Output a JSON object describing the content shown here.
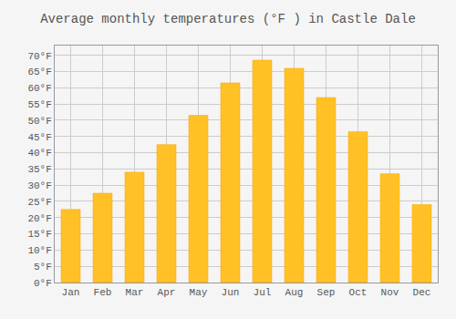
{
  "chart_data": {
    "type": "bar",
    "title": "Average monthly temperatures (°F ) in Castle Dale",
    "categories": [
      "Jan",
      "Feb",
      "Mar",
      "Apr",
      "May",
      "Jun",
      "Jul",
      "Aug",
      "Sep",
      "Oct",
      "Nov",
      "Dec"
    ],
    "values": [
      22.5,
      27.5,
      34.0,
      42.5,
      51.5,
      61.5,
      68.5,
      66.0,
      57.0,
      46.5,
      33.5,
      24.0
    ],
    "color": "#FFC125",
    "ylim": [
      0,
      73
    ],
    "yticks": [
      {
        "value": 0,
        "label": "0°F"
      },
      {
        "value": 5,
        "label": "5°F"
      },
      {
        "value": 10,
        "label": "10°F"
      },
      {
        "value": 15,
        "label": "15°F"
      },
      {
        "value": 20,
        "label": "20°F"
      },
      {
        "value": 25,
        "label": "25°F"
      },
      {
        "value": 30,
        "label": "30°F"
      },
      {
        "value": 35,
        "label": "35°F"
      },
      {
        "value": 40,
        "label": "40°F"
      },
      {
        "value": 45,
        "label": "45°F"
      },
      {
        "value": 50,
        "label": "50°F"
      },
      {
        "value": 55,
        "label": "55°F"
      },
      {
        "value": 60,
        "label": "60°F"
      },
      {
        "value": 65,
        "label": "65°F"
      },
      {
        "value": 70,
        "label": "70°F"
      }
    ],
    "grid": true
  }
}
